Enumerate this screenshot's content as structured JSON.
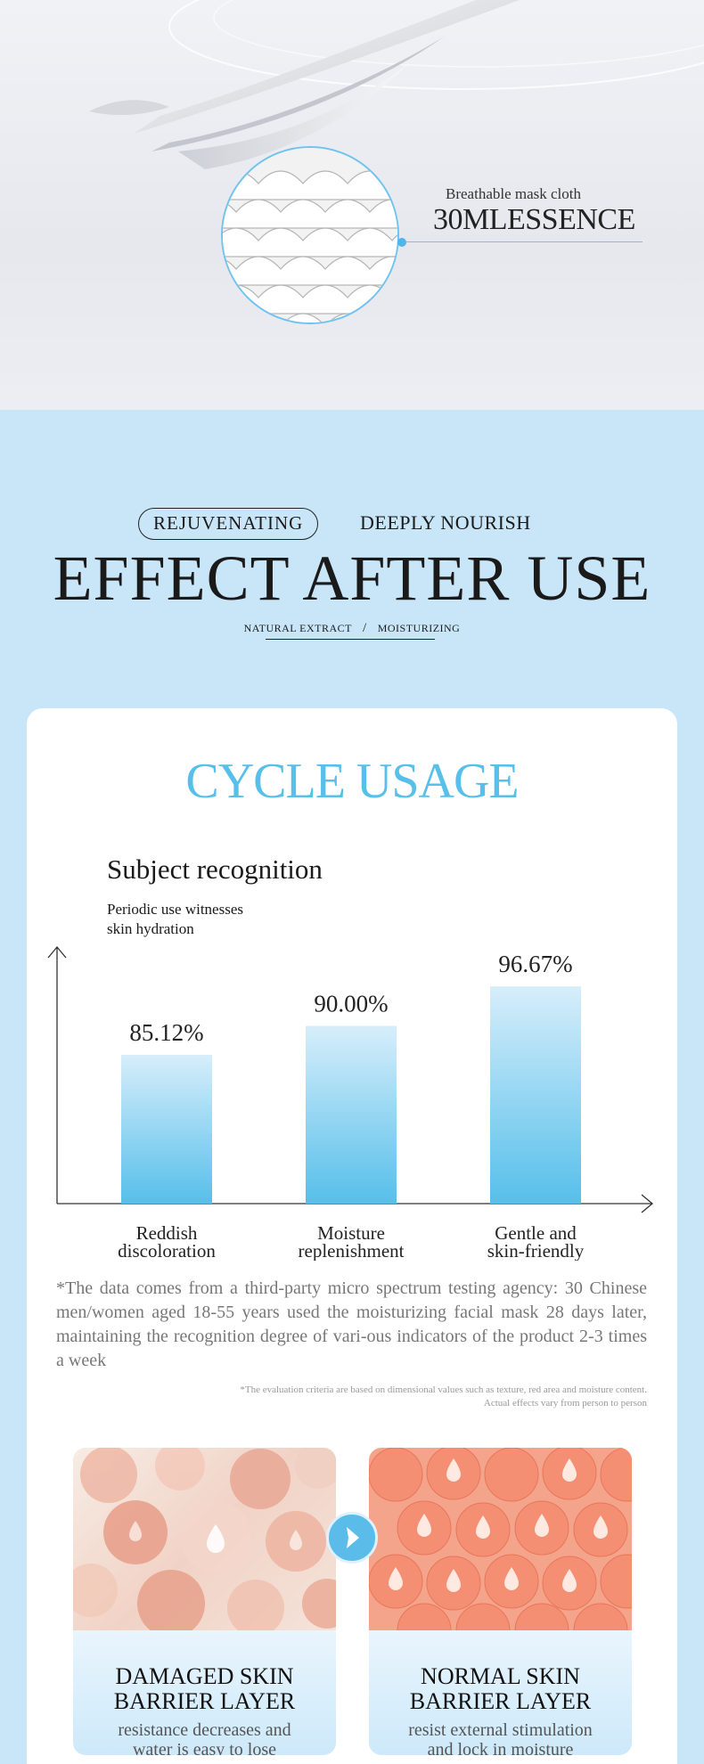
{
  "hero": {
    "callout_small": "Breathable mask cloth",
    "callout_big": "30MLESSENCE"
  },
  "heading": {
    "pill": "REJUVENATING",
    "tagline": "DEEPLY NOURISH",
    "title": "EFFECT AFTER USE",
    "sub_left": "NATURAL EXTRACT",
    "sub_sep": "/",
    "sub_right": "MOISTURIZING"
  },
  "card": {
    "title": "CYCLE USAGE",
    "subject_title": "Subject recognition",
    "subject_desc_line1": "Periodic use witnesses",
    "subject_desc_line2": "skin hydration"
  },
  "chart_data": {
    "type": "bar",
    "categories": [
      "Reddish discoloration",
      "Moisture replenishment",
      "Gentle and skin-friendly"
    ],
    "category_lines": [
      [
        "Reddish",
        "discoloration"
      ],
      [
        "Moisture",
        "replenishment"
      ],
      [
        "Gentle and",
        "skin-friendly"
      ]
    ],
    "values": [
      85.12,
      90.0,
      96.67
    ],
    "value_labels": [
      "85.12%",
      "90.00%",
      "96.67%"
    ],
    "ylim": [
      60,
      100
    ],
    "grid": false,
    "colors": {
      "bar_top": "#d7eefb",
      "bar_bottom": "#56bfea",
      "axis": "#333333"
    }
  },
  "notes": {
    "footnote": "*The data comes from a third-party micro spectrum testing agency: 30 Chinese men/women aged 18-55 years used the moisturizing facial mask 28 days later, maintaining the recognition degree of vari-ous indicators of the product 2-3 times a week",
    "smallnote": "*The evaluation criteria are based on dimensional values such as texture, red area and moisture content. Actual effects vary from person to person"
  },
  "panels": {
    "left": {
      "title_line1": "DAMAGED SKIN",
      "title_line2": "BARRIER LAYER",
      "desc_line1": "resistance decreases and",
      "desc_line2": "water is easy to lose"
    },
    "right": {
      "title_line1": "NORMAL SKIN",
      "title_line2": "BARRIER LAYER",
      "desc_line1": "resist external stimulation",
      "desc_line2": "and lock in moisture"
    }
  },
  "colors": {
    "accent": "#56bfea",
    "band": "#c8e6f8"
  },
  "icons": {
    "arrow": "chevron-right-icon",
    "droplet": "droplet-icon"
  }
}
